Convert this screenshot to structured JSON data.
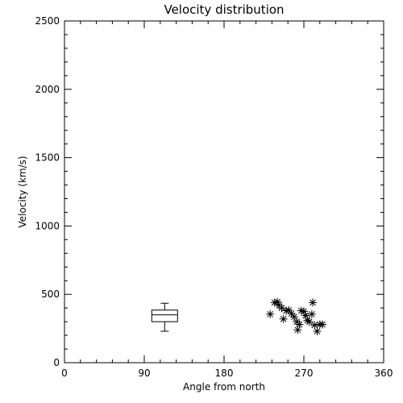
{
  "chart_data": {
    "type": "scatter",
    "title": "Velocity distribution",
    "xlabel": "Angle from north",
    "ylabel": "Velocity (km/s)",
    "xlim": [
      0,
      360
    ],
    "ylim": [
      0,
      2500
    ],
    "xticks": [
      0,
      90,
      180,
      270,
      360
    ],
    "yticks": [
      0,
      500,
      1000,
      1500,
      2000,
      2500
    ],
    "grid": false,
    "legend": "none",
    "boxplot": {
      "x": 113,
      "min": 230,
      "q1": 300,
      "median": 350,
      "q3": 385,
      "max": 435
    },
    "points": [
      {
        "x": 232,
        "y": 355
      },
      {
        "x": 237,
        "y": 440
      },
      {
        "x": 240,
        "y": 445
      },
      {
        "x": 242,
        "y": 420
      },
      {
        "x": 245,
        "y": 400
      },
      {
        "x": 247,
        "y": 320
      },
      {
        "x": 250,
        "y": 380
      },
      {
        "x": 253,
        "y": 385
      },
      {
        "x": 256,
        "y": 360
      },
      {
        "x": 259,
        "y": 335
      },
      {
        "x": 262,
        "y": 300
      },
      {
        "x": 263,
        "y": 240
      },
      {
        "x": 265,
        "y": 280
      },
      {
        "x": 267,
        "y": 380
      },
      {
        "x": 270,
        "y": 375
      },
      {
        "x": 272,
        "y": 345
      },
      {
        "x": 274,
        "y": 310
      },
      {
        "x": 276,
        "y": 300
      },
      {
        "x": 279,
        "y": 355
      },
      {
        "x": 280,
        "y": 440
      },
      {
        "x": 282,
        "y": 275
      },
      {
        "x": 285,
        "y": 230
      },
      {
        "x": 288,
        "y": 280
      },
      {
        "x": 291,
        "y": 280
      }
    ],
    "marker_symbol": "*",
    "color": "#000000"
  }
}
